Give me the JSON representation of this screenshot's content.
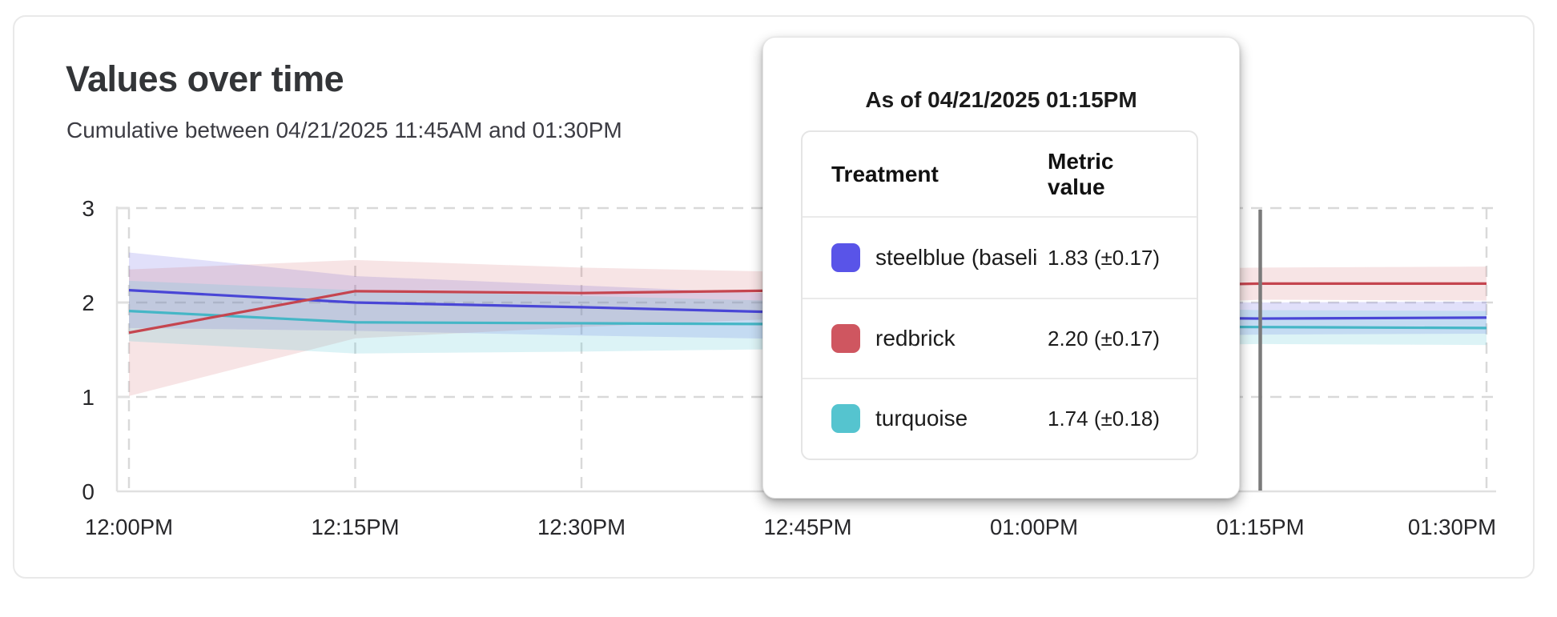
{
  "card": {
    "title": "Values over time",
    "subtitle": "Cumulative between 04/21/2025 11:45AM and 01:30PM"
  },
  "tooltip": {
    "title": "As of 04/21/2025 01:15PM",
    "columns": [
      "Treatment",
      "Metric value"
    ],
    "rows": [
      {
        "swatch_color": "#5954e8",
        "label": "steelblue  (baseli",
        "value": "1.83 (±0.17)"
      },
      {
        "swatch_color": "#cf5660",
        "label": "redbrick",
        "value": "2.20 (±0.17)"
      },
      {
        "swatch_color": "#55c4cf",
        "label": "turquoise",
        "value": "1.74 (±0.18)"
      }
    ]
  },
  "chart_data": {
    "type": "line",
    "title": "Values over time",
    "x_labels": [
      "12:00PM",
      "12:15PM",
      "12:30PM",
      "12:45PM",
      "01:00PM",
      "01:15PM",
      "01:30PM"
    ],
    "y_tick_labels": [
      "0",
      "1",
      "2",
      "3"
    ],
    "ylim": [
      0,
      3
    ],
    "grid": "dashed",
    "hover_line_x_label": "01:15PM",
    "hover_line_color": "#7a7a7a",
    "axis_color": "#e0e0e0",
    "grid_color": "#d9d9d9",
    "series": [
      {
        "name": "steelblue (baseline)",
        "line_color": "#4946d6",
        "band_color": "rgba(88,85,226,0.18)",
        "values": [
          2.13,
          2.0,
          1.95,
          1.89,
          1.85,
          1.83,
          1.84
        ],
        "upper": [
          2.53,
          2.28,
          2.18,
          2.08,
          2.02,
          2.0,
          2.01
        ],
        "lower": [
          1.73,
          1.7,
          1.65,
          1.61,
          1.63,
          1.66,
          1.67
        ]
      },
      {
        "name": "redbrick",
        "line_color": "#c5454f",
        "band_color": "rgba(205,85,95,0.16)",
        "values": [
          1.68,
          2.12,
          2.1,
          2.13,
          2.16,
          2.2,
          2.2
        ],
        "upper": [
          2.35,
          2.45,
          2.37,
          2.32,
          2.34,
          2.37,
          2.38
        ],
        "lower": [
          1.01,
          1.62,
          1.74,
          1.84,
          1.94,
          2.03,
          2.02
        ]
      },
      {
        "name": "turquoise",
        "line_color": "#45b6c6",
        "band_color": "rgba(95,201,212,0.22)",
        "values": [
          1.91,
          1.79,
          1.78,
          1.77,
          1.75,
          1.74,
          1.73
        ],
        "upper": [
          2.23,
          2.13,
          2.07,
          2.01,
          1.96,
          1.92,
          1.91
        ],
        "lower": [
          1.59,
          1.46,
          1.48,
          1.51,
          1.53,
          1.56,
          1.55
        ]
      }
    ]
  }
}
